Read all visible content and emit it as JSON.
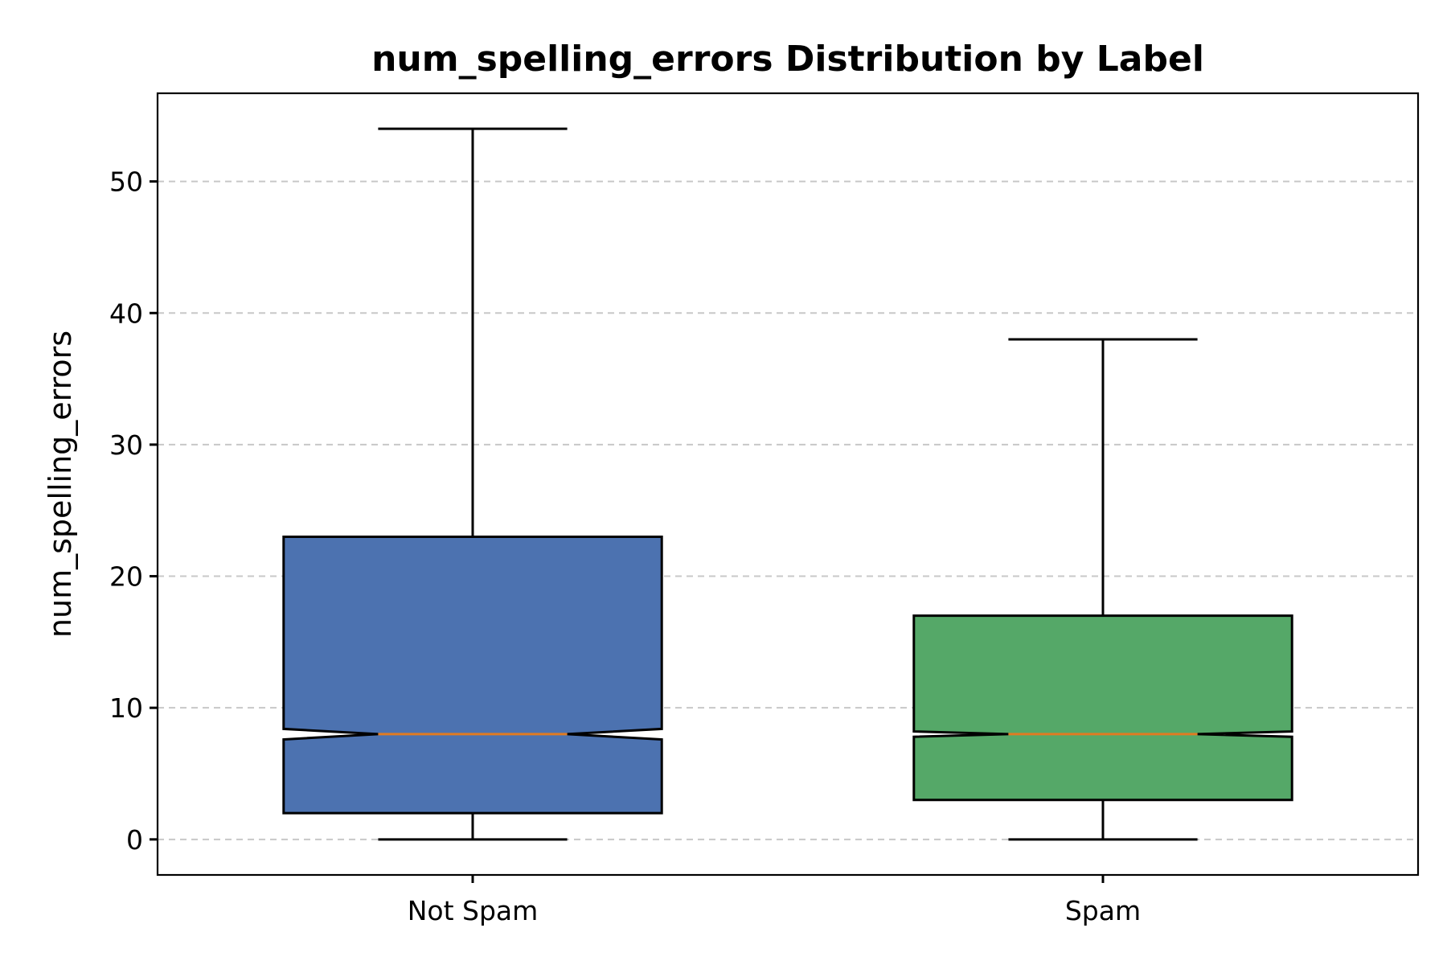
{
  "chart_data": {
    "type": "box",
    "title": "num_spelling_errors Distribution by Label",
    "xlabel": "",
    "ylabel": "num_spelling_errors",
    "categories": [
      "Not Spam",
      "Spam"
    ],
    "ylim": [
      -2.7,
      56.7
    ],
    "yticks": [
      0,
      10,
      20,
      30,
      40,
      50
    ],
    "grid": "y-dashed",
    "notched": true,
    "boxes": [
      {
        "category": "Not Spam",
        "whisker_low": 0,
        "q1": 2,
        "median": 8,
        "q3": 23,
        "whisker_high": 54,
        "notch_low": 7.6,
        "notch_high": 8.4,
        "color": "#4c72b0"
      },
      {
        "category": "Spam",
        "whisker_low": 0,
        "q1": 3,
        "median": 8,
        "q3": 17,
        "whisker_high": 38,
        "notch_low": 7.8,
        "notch_high": 8.2,
        "color": "#55a868"
      }
    ],
    "median_color": "#e07b22"
  }
}
